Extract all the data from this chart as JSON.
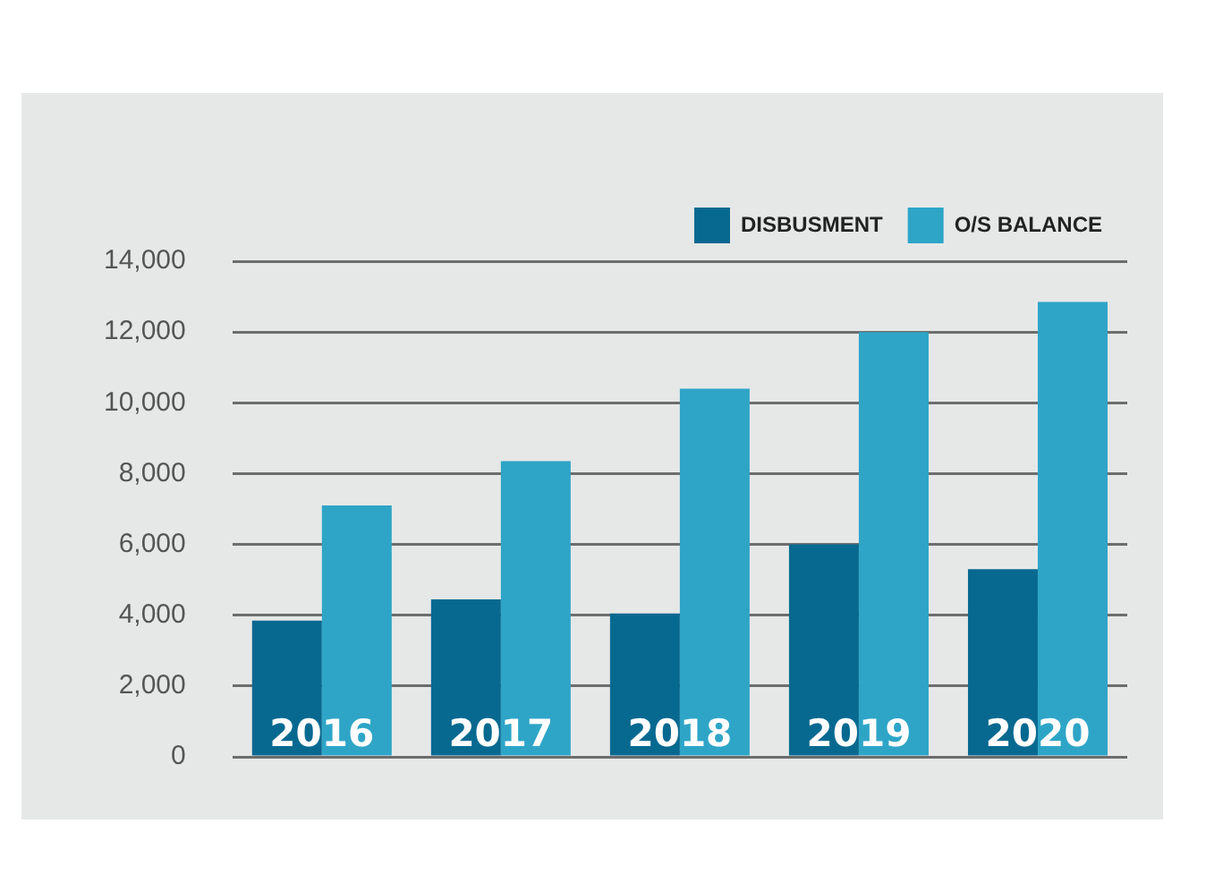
{
  "chart_data": {
    "type": "bar",
    "categories": [
      "2016",
      "2017",
      "2018",
      "2019",
      "2020"
    ],
    "series": [
      {
        "name": "DISBUSMENT",
        "color": "#086990",
        "values": [
          3850,
          4450,
          4050,
          6000,
          5300
        ]
      },
      {
        "name": "O/S BALANCE",
        "color": "#2ea5c7",
        "values": [
          7100,
          8350,
          10400,
          12000,
          12850
        ]
      }
    ],
    "ylim": [
      0,
      14000
    ],
    "yticks": [
      {
        "value": 0,
        "label": "0"
      },
      {
        "value": 2000,
        "label": "2,000"
      },
      {
        "value": 4000,
        "label": "4,000"
      },
      {
        "value": 6000,
        "label": "6,000"
      },
      {
        "value": 8000,
        "label": "8,000"
      },
      {
        "value": 10000,
        "label": "10,000"
      },
      {
        "value": 12000,
        "label": "12,000"
      },
      {
        "value": 14000,
        "label": "14,000"
      }
    ],
    "grid": "y",
    "legend": "top right"
  }
}
